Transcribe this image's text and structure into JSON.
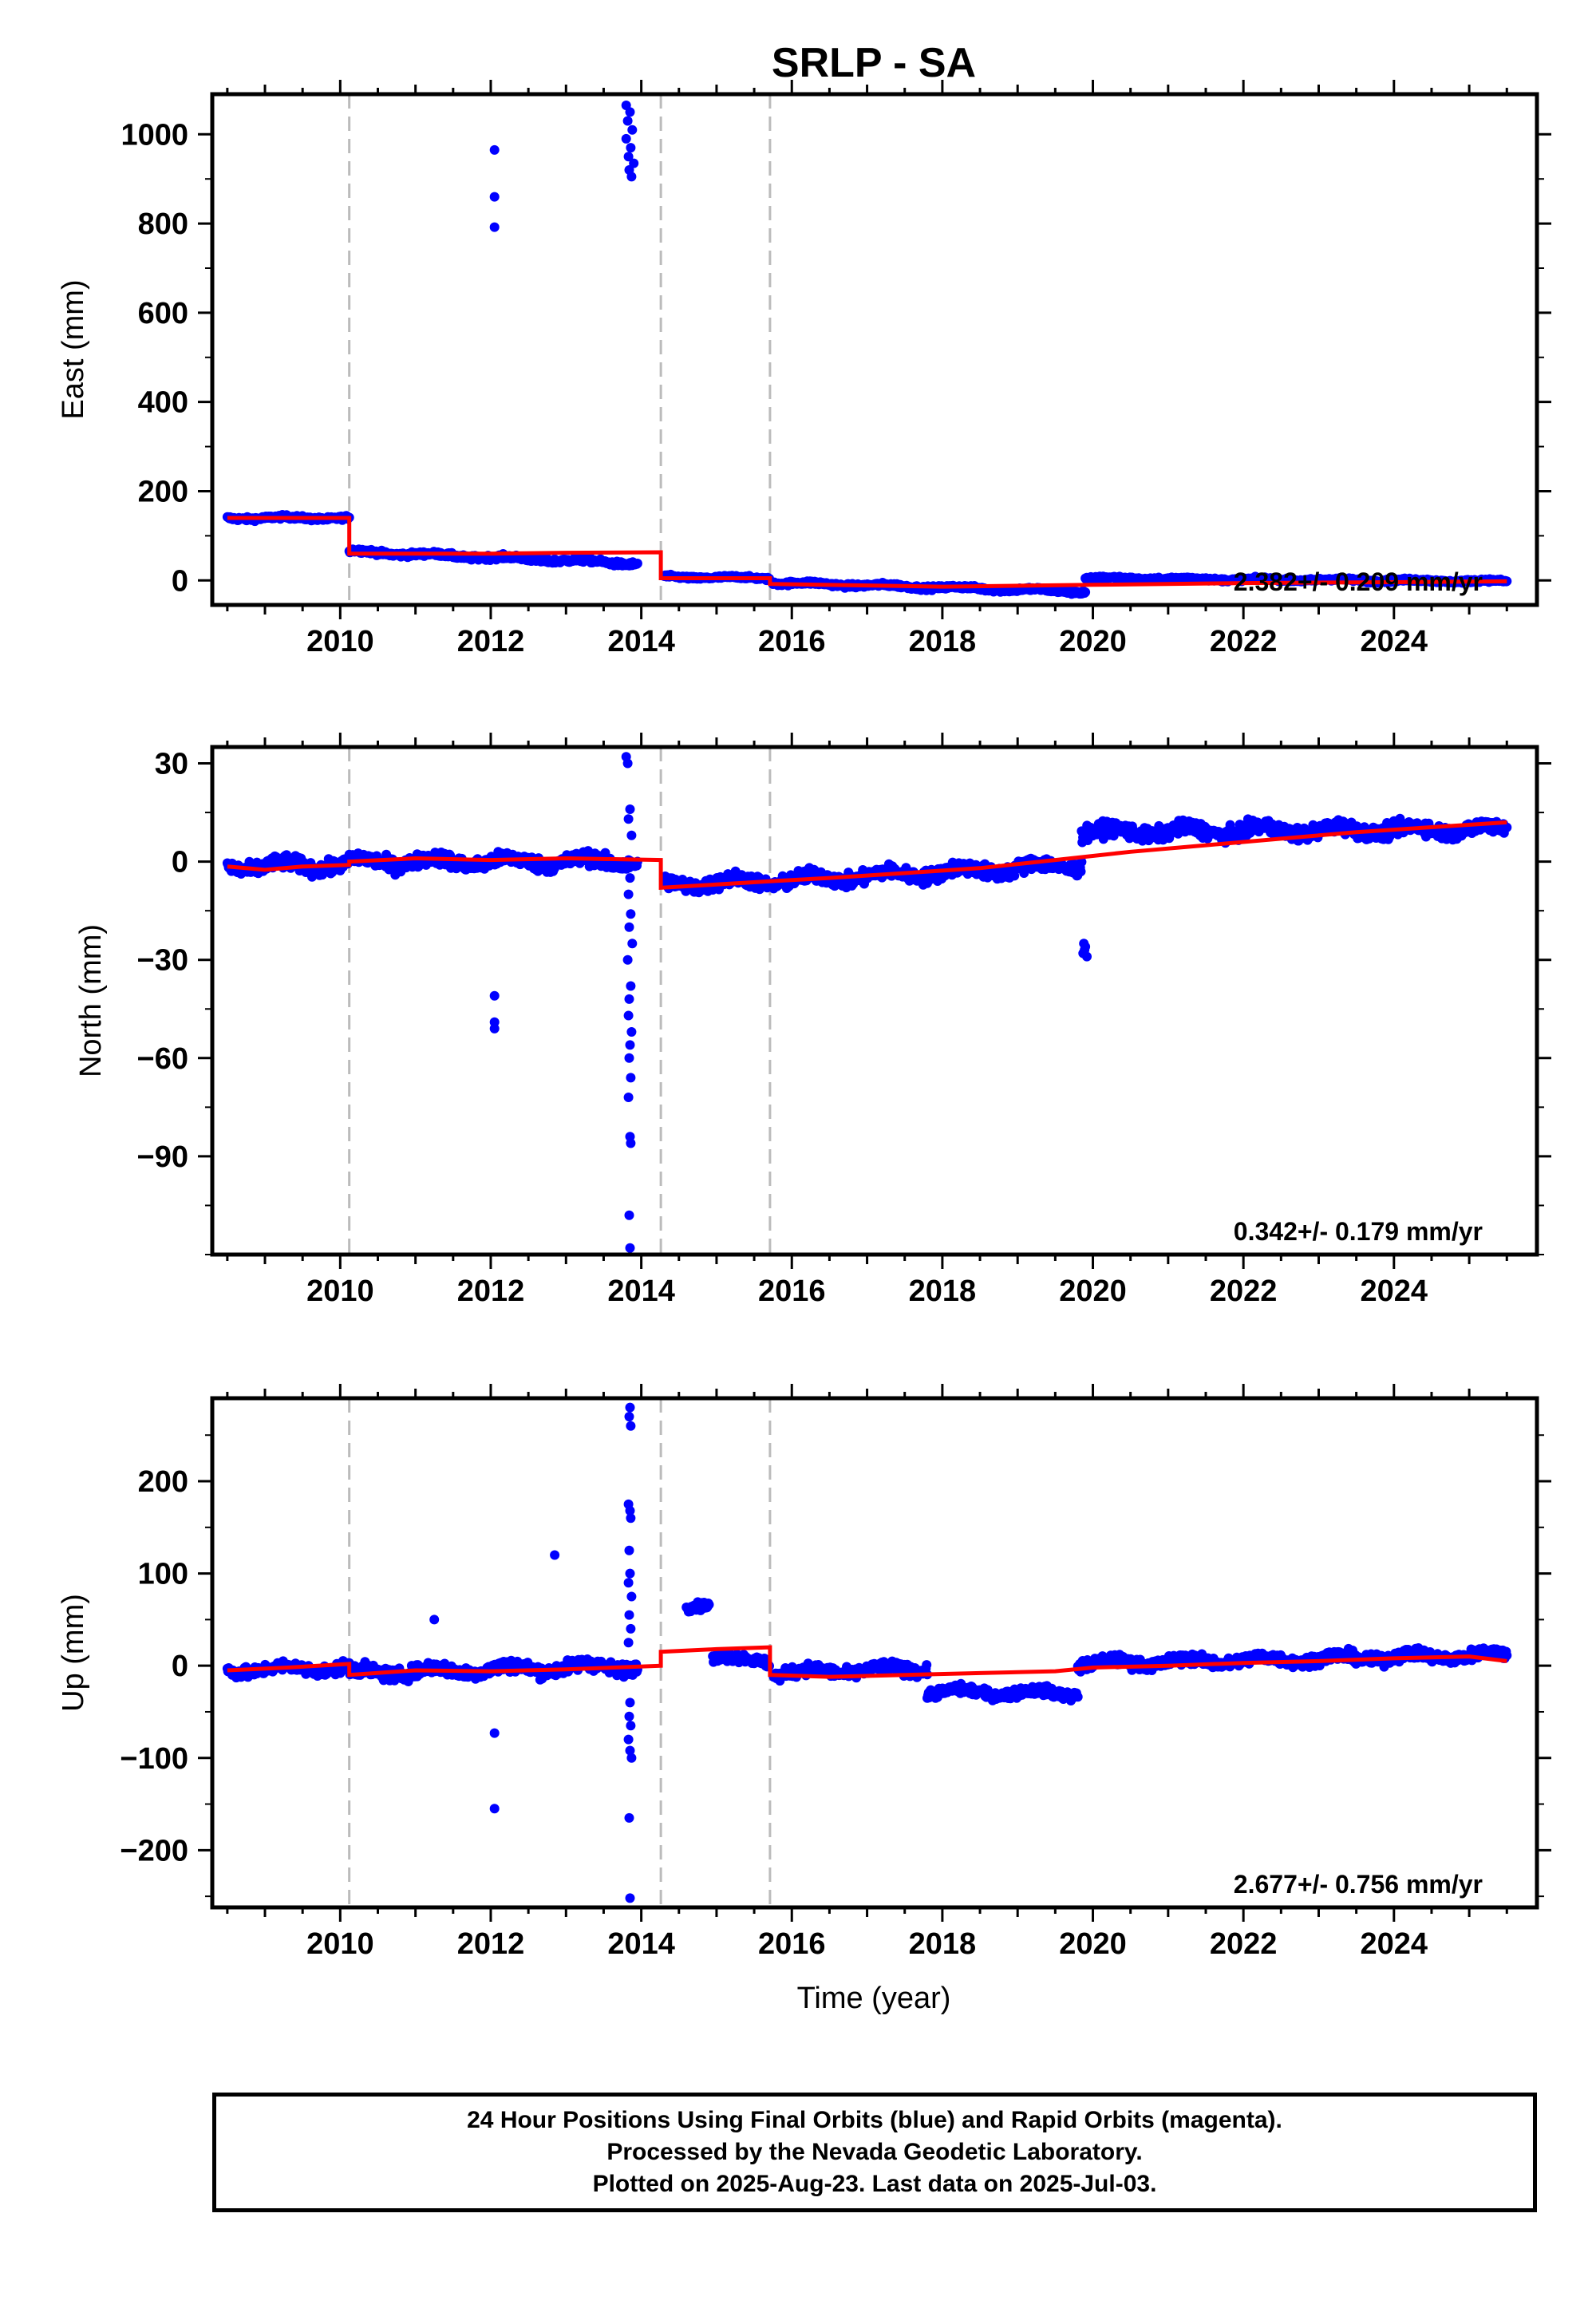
{
  "title": "SRLP - SA",
  "colors": {
    "final": "#0000ff",
    "model": "#ff0000",
    "offset": "#bbbbbb",
    "frame": "#000000"
  },
  "xaxis": {
    "label": "Time (year)",
    "range": [
      2008.3,
      2025.9
    ],
    "ticks": [
      2010,
      2012,
      2014,
      2016,
      2018,
      2020,
      2022,
      2024
    ]
  },
  "offset_epochs": [
    2010.12,
    2014.26,
    2015.71
  ],
  "caption": [
    "24 Hour Positions Using Final Orbits (blue) and Rapid Orbits (magenta).",
    "Processed by the Nevada Geodetic Laboratory.",
    "Plotted on 2025-Aug-23. Last data on 2025-Jul-03."
  ],
  "chart_data": [
    {
      "type": "scatter",
      "name": "east",
      "ylabel": "East (mm)",
      "ylim": [
        -55,
        1090
      ],
      "yticks": [
        0,
        200,
        400,
        600,
        800,
        1000
      ],
      "rate_label": "2.382+/- 0.209 mm/yr",
      "segments": [
        {
          "x": [
            2008.5,
            2010.12
          ],
          "base": 140,
          "noise": 5
        },
        {
          "x": [
            2010.12,
            2011.5
          ],
          "base": 65,
          "end": 55,
          "noise": 6
        },
        {
          "x": [
            2011.5,
            2013.95
          ],
          "base": 55,
          "end": 38,
          "noise": 6
        },
        {
          "x": [
            2014.3,
            2015.7
          ],
          "base": 8,
          "end": 5,
          "noise": 4
        },
        {
          "x": [
            2015.75,
            2019.9
          ],
          "base": -5,
          "end": -25,
          "noise": 5
        },
        {
          "x": [
            2019.9,
            2025.5
          ],
          "base": 5,
          "end": -2,
          "noise": 4
        }
      ],
      "outliers": [
        [
          2012.05,
          965
        ],
        [
          2012.05,
          860
        ],
        [
          2012.05,
          792
        ],
        [
          2013.8,
          1065
        ],
        [
          2013.85,
          1050
        ],
        [
          2013.82,
          1030
        ],
        [
          2013.88,
          1010
        ],
        [
          2013.8,
          990
        ],
        [
          2013.86,
          970
        ],
        [
          2013.83,
          950
        ],
        [
          2013.9,
          935
        ],
        [
          2013.84,
          920
        ],
        [
          2013.87,
          905
        ],
        [
          2019.85,
          -30
        ],
        [
          2019.87,
          -25
        ]
      ],
      "model": [
        [
          2008.5,
          140
        ],
        [
          2010.12,
          140
        ],
        [
          2010.12,
          60
        ],
        [
          2012.0,
          60
        ],
        [
          2013.0,
          62
        ],
        [
          2014.26,
          63
        ],
        [
          2014.26,
          5
        ],
        [
          2015.71,
          5
        ],
        [
          2015.71,
          -8
        ],
        [
          2018.0,
          -14
        ],
        [
          2020.0,
          -10
        ],
        [
          2022.0,
          -6
        ],
        [
          2024.0,
          -4
        ],
        [
          2025.5,
          -2
        ]
      ]
    },
    {
      "type": "scatter",
      "name": "north",
      "ylabel": "North (mm)",
      "ylim": [
        -120,
        35
      ],
      "yticks": [
        -90,
        -60,
        -30,
        0,
        30
      ],
      "rate_label": "0.342+/- 0.179 mm/yr",
      "segments": [
        {
          "x": [
            2008.5,
            2010.12
          ],
          "base": -1.5,
          "end": -1,
          "noise": 2.5
        },
        {
          "x": [
            2010.12,
            2013.95
          ],
          "base": 0,
          "end": 0,
          "noise": 2.5
        },
        {
          "x": [
            2014.3,
            2015.7
          ],
          "base": -7,
          "end": -6,
          "noise": 2.5
        },
        {
          "x": [
            2015.75,
            2019.85
          ],
          "base": -6,
          "end": -1,
          "noise": 2.5
        },
        {
          "x": [
            2019.85,
            2025.5
          ],
          "base": 9,
          "end": 10,
          "noise": 2.5
        }
      ],
      "outliers": [
        [
          2013.8,
          32
        ],
        [
          2013.82,
          30
        ],
        [
          2013.85,
          16
        ],
        [
          2013.83,
          13
        ],
        [
          2013.87,
          8
        ],
        [
          2013.85,
          -5
        ],
        [
          2013.83,
          -10
        ],
        [
          2013.86,
          -16
        ],
        [
          2013.84,
          -20
        ],
        [
          2013.88,
          -25
        ],
        [
          2013.82,
          -30
        ],
        [
          2013.86,
          -38
        ],
        [
          2013.84,
          -42
        ],
        [
          2013.83,
          -47
        ],
        [
          2013.87,
          -52
        ],
        [
          2013.85,
          -56
        ],
        [
          2013.84,
          -60
        ],
        [
          2013.86,
          -66
        ],
        [
          2013.83,
          -72
        ],
        [
          2013.85,
          -84
        ],
        [
          2013.86,
          -86
        ],
        [
          2013.84,
          -108
        ],
        [
          2013.85,
          -118
        ],
        [
          2012.05,
          -41
        ],
        [
          2012.05,
          -49
        ],
        [
          2012.05,
          -51
        ],
        [
          2019.88,
          -25
        ],
        [
          2019.9,
          -26
        ],
        [
          2019.87,
          -28
        ],
        [
          2019.92,
          -29
        ],
        [
          2019.89,
          -27
        ]
      ],
      "model": [
        [
          2008.5,
          -1.5
        ],
        [
          2009.0,
          -2.5
        ],
        [
          2009.5,
          -1.5
        ],
        [
          2010.12,
          -1
        ],
        [
          2010.12,
          0
        ],
        [
          2011.0,
          1
        ],
        [
          2012.0,
          0.5
        ],
        [
          2013.0,
          1
        ],
        [
          2014.26,
          0.5
        ],
        [
          2014.26,
          -8
        ],
        [
          2015.0,
          -7
        ],
        [
          2015.71,
          -6
        ],
        [
          2016.5,
          -5
        ],
        [
          2017.5,
          -3.5
        ],
        [
          2018.5,
          -2
        ],
        [
          2019.5,
          0.5
        ],
        [
          2020.5,
          3
        ],
        [
          2021.5,
          5
        ],
        [
          2022.5,
          7
        ],
        [
          2023.5,
          9
        ],
        [
          2024.5,
          10.5
        ],
        [
          2025.5,
          12
        ]
      ]
    },
    {
      "type": "scatter",
      "name": "up",
      "ylabel": "Up (mm)",
      "ylim": [
        -262,
        290
      ],
      "yticks": [
        -200,
        -100,
        0,
        100,
        200
      ],
      "rate_label": "2.677+/- 0.756 mm/yr",
      "segments": [
        {
          "x": [
            2008.5,
            2010.12
          ],
          "base": -5,
          "end": -2,
          "noise": 7
        },
        {
          "x": [
            2010.12,
            2013.95
          ],
          "base": -8,
          "end": 0,
          "noise": 8
        },
        {
          "x": [
            2014.6,
            2014.9
          ],
          "base": 65,
          "end": 68,
          "noise": 5
        },
        {
          "x": [
            2014.95,
            2015.7
          ],
          "base": 8,
          "end": 5,
          "noise": 6
        },
        {
          "x": [
            2015.75,
            2017.8
          ],
          "base": -8,
          "end": -3,
          "noise": 7
        },
        {
          "x": [
            2017.8,
            2019.8
          ],
          "base": -28,
          "end": -30,
          "noise": 6
        },
        {
          "x": [
            2019.8,
            2025.5
          ],
          "base": 2,
          "end": 12,
          "noise": 7
        }
      ],
      "outliers": [
        [
          2013.85,
          280
        ],
        [
          2013.84,
          270
        ],
        [
          2013.86,
          260
        ],
        [
          2013.83,
          175
        ],
        [
          2013.85,
          168
        ],
        [
          2013.86,
          160
        ],
        [
          2013.84,
          125
        ],
        [
          2013.85,
          100
        ],
        [
          2013.83,
          90
        ],
        [
          2013.87,
          75
        ],
        [
          2013.84,
          55
        ],
        [
          2013.86,
          40
        ],
        [
          2013.83,
          25
        ],
        [
          2013.85,
          -40
        ],
        [
          2013.84,
          -55
        ],
        [
          2013.86,
          -65
        ],
        [
          2013.83,
          -80
        ],
        [
          2013.85,
          -92
        ],
        [
          2013.87,
          -100
        ],
        [
          2013.84,
          -165
        ],
        [
          2013.85,
          -252
        ],
        [
          2012.85,
          120
        ],
        [
          2011.25,
          50
        ],
        [
          2012.05,
          -73
        ],
        [
          2012.05,
          -155
        ]
      ],
      "model": [
        [
          2008.5,
          -5
        ],
        [
          2009.3,
          -2
        ],
        [
          2010.12,
          2
        ],
        [
          2010.12,
          -10
        ],
        [
          2011.0,
          -5
        ],
        [
          2012.0,
          -6
        ],
        [
          2013.0,
          -4
        ],
        [
          2014.26,
          0
        ],
        [
          2014.26,
          15
        ],
        [
          2015.0,
          18
        ],
        [
          2015.71,
          20
        ],
        [
          2015.71,
          -10
        ],
        [
          2016.5,
          -12
        ],
        [
          2017.5,
          -10
        ],
        [
          2018.5,
          -8
        ],
        [
          2019.5,
          -6
        ],
        [
          2020.0,
          -2
        ],
        [
          2021.0,
          0
        ],
        [
          2022.0,
          3
        ],
        [
          2023.0,
          5
        ],
        [
          2024.0,
          8
        ],
        [
          2025.0,
          10
        ],
        [
          2025.5,
          5
        ]
      ]
    }
  ]
}
